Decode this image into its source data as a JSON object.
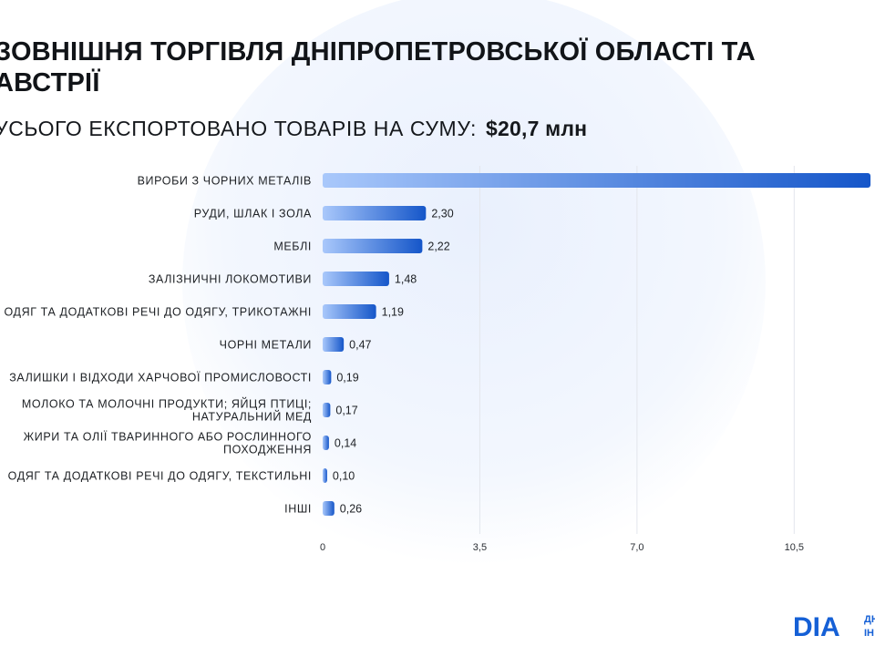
{
  "page": {
    "title": "ЗОВНІШНЯ ТОРГІВЛЯ ДНІПРОПЕТРОВСЬКОЇ ОБЛАСТІ ТА\nАВСТРІЇ",
    "subtitle": "УСЬОГО ЕКСПОРТОВАНО ТОВАРІВ НА СУМУ:",
    "total": "$20,7 млн",
    "logo": "DIA",
    "logo_sub": [
      "ДН",
      "ІН"
    ]
  },
  "colors": {
    "bar_start": "#a9c8fb",
    "bar_end": "#1556c9",
    "grid": "#e3e6ec",
    "brand": "#1560d6"
  },
  "chart_data": {
    "type": "bar",
    "orientation": "horizontal",
    "title": "",
    "xlabel": "",
    "ylabel": "",
    "categories": [
      [
        "ВИРОБИ З ЧОРНИХ МЕТАЛІВ"
      ],
      [
        "РУДИ, ШЛАК І ЗОЛА"
      ],
      [
        "МЕБЛІ"
      ],
      [
        "ЗАЛІЗНИЧНІ ЛОКОМОТИВИ"
      ],
      [
        "ОДЯГ ТА ДОДАТКОВІ РЕЧІ ДО ОДЯГУ, ТРИКОТАЖНІ"
      ],
      [
        "ЧОРНІ МЕТАЛИ"
      ],
      [
        "ЗАЛИШКИ І ВІДХОДИ ХАРЧОВОЇ ПРОМИСЛОВОСТІ"
      ],
      [
        "МОЛОКО ТА МОЛОЧНІ ПРОДУКТИ; ЯЙЦЯ ПТИЦІ;",
        "НАТУРАЛЬНИЙ МЕД"
      ],
      [
        "ЖИРИ ТА ОЛІЇ ТВАРИННОГО АБО РОСЛИННОГО",
        "ПОХОДЖЕННЯ"
      ],
      [
        "ОДЯГ ТА ДОДАТКОВІ РЕЧІ ДО ОДЯГУ, ТЕКСТИЛЬНІ"
      ],
      [
        "ІНШІ"
      ]
    ],
    "values": [
      12.2,
      2.3,
      2.22,
      1.48,
      1.19,
      0.47,
      0.19,
      0.17,
      0.14,
      0.1,
      0.26
    ],
    "labels": [
      "",
      "2,30",
      "2,22",
      "1,48",
      "1,19",
      "0,47",
      "0,19",
      "0,17",
      "0,14",
      "0,10",
      "0,26"
    ],
    "xticks": [
      0,
      3.5,
      7.0,
      10.5
    ],
    "xtick_labels": [
      "0",
      "3,5",
      "7,0",
      "10,5"
    ],
    "xlim": [
      0,
      12.3
    ],
    "grid": true
  }
}
